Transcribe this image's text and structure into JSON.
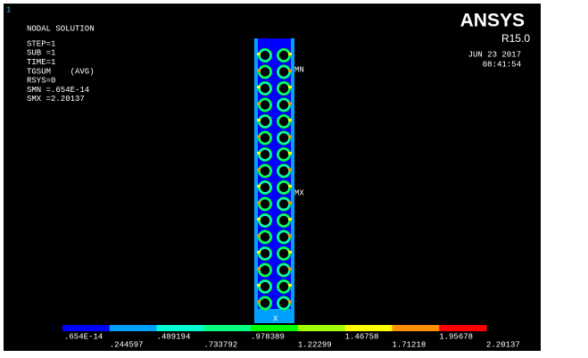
{
  "window_number": "1",
  "info": {
    "title": "NODAL SOLUTION",
    "lines": [
      "STEP=1",
      "SUB =1",
      "TIME=1",
      "TGSUM    (AVG)",
      "RSYS=0",
      "SMN =.654E-14",
      "SMX =2.20137"
    ]
  },
  "logo": {
    "name": "ANSYS",
    "release": "R15.0",
    "date": "JUN 23 2017",
    "time": "08:41:54"
  },
  "annotations": {
    "min": "MN",
    "max": "MX",
    "axis": "X"
  },
  "legend": {
    "colors": [
      "#0000ff",
      "#00a0ff",
      "#00ffd0",
      "#00ff80",
      "#00ff00",
      "#a0ff00",
      "#ffff00",
      "#ff9000",
      "#ff0000"
    ],
    "labels": [
      ".654E-14",
      ".244597",
      ".489194",
      ".733792",
      ".978389",
      "1.22299",
      "1.46758",
      "1.71218",
      "1.95678",
      "2.20137"
    ]
  }
}
